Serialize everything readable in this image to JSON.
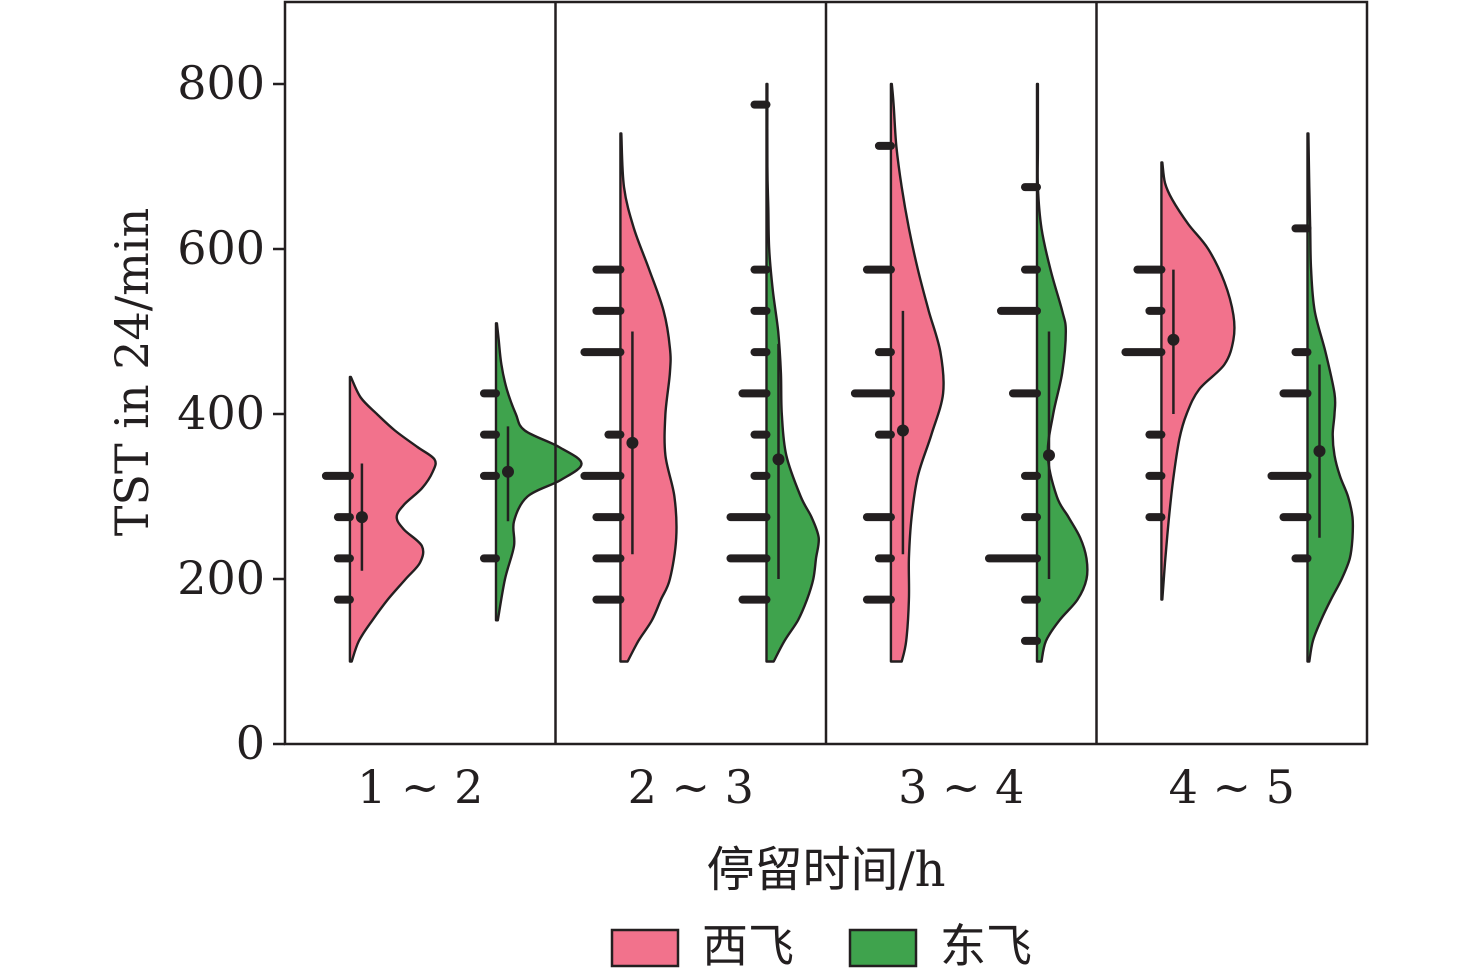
{
  "chart_data": {
    "type": "violin",
    "xlabel": "停留时间/h",
    "ylabel": "TST in 24/min",
    "ylim": [
      0,
      900
    ],
    "yticks": [
      0,
      200,
      400,
      600,
      800
    ],
    "grid": false,
    "legend_position": "bottom",
    "categories": [
      "1 ~ 2",
      "2 ~ 3",
      "3 ~ 4",
      "4 ~ 5"
    ],
    "series": [
      {
        "name": "西飞",
        "color": "#f2728c",
        "groups": [
          {
            "category": "1 ~ 2",
            "range": [
              100,
              445
            ],
            "density": [
              [
                100,
                0.02
              ],
              [
                125,
                0.1
              ],
              [
                150,
                0.25
              ],
              [
                175,
                0.42
              ],
              [
                200,
                0.62
              ],
              [
                220,
                0.78
              ],
              [
                240,
                0.8
              ],
              [
                260,
                0.6
              ],
              [
                275,
                0.52
              ],
              [
                290,
                0.6
              ],
              [
                310,
                0.8
              ],
              [
                330,
                0.92
              ],
              [
                345,
                0.94
              ],
              [
                360,
                0.75
              ],
              [
                380,
                0.5
              ],
              [
                400,
                0.3
              ],
              [
                420,
                0.12
              ],
              [
                445,
                0.01
              ]
            ],
            "mean": 275,
            "whisker": [
              210,
              340
            ],
            "points": [
              [
                175,
                1
              ],
              [
                225,
                1
              ],
              [
                275,
                1
              ],
              [
                325,
                2
              ]
            ]
          },
          {
            "category": "2 ~ 3",
            "range": [
              100,
              740
            ],
            "density": [
              [
                100,
                0.08
              ],
              [
                125,
                0.2
              ],
              [
                150,
                0.35
              ],
              [
                175,
                0.45
              ],
              [
                200,
                0.55
              ],
              [
                250,
                0.62
              ],
              [
                300,
                0.6
              ],
              [
                350,
                0.5
              ],
              [
                400,
                0.5
              ],
              [
                450,
                0.55
              ],
              [
                480,
                0.55
              ],
              [
                525,
                0.48
              ],
              [
                575,
                0.32
              ],
              [
                625,
                0.15
              ],
              [
                675,
                0.04
              ],
              [
                740,
                0.01
              ]
            ],
            "mean": 365,
            "whisker": [
              230,
              500
            ],
            "points": [
              [
                175,
                2
              ],
              [
                225,
                2
              ],
              [
                275,
                2
              ],
              [
                325,
                3
              ],
              [
                375,
                1
              ],
              [
                475,
                3
              ],
              [
                525,
                2
              ],
              [
                575,
                2
              ]
            ]
          },
          {
            "category": "3 ~ 4",
            "range": [
              100,
              800
            ],
            "density": [
              [
                100,
                0.12
              ],
              [
                125,
                0.17
              ],
              [
                175,
                0.2
              ],
              [
                225,
                0.2
              ],
              [
                275,
                0.23
              ],
              [
                325,
                0.3
              ],
              [
                375,
                0.45
              ],
              [
                425,
                0.58
              ],
              [
                475,
                0.55
              ],
              [
                525,
                0.42
              ],
              [
                575,
                0.3
              ],
              [
                625,
                0.2
              ],
              [
                675,
                0.12
              ],
              [
                725,
                0.06
              ],
              [
                775,
                0.03
              ],
              [
                800,
                0.01
              ]
            ],
            "mean": 380,
            "whisker": [
              230,
              525
            ],
            "points": [
              [
                175,
                2
              ],
              [
                225,
                1
              ],
              [
                275,
                2
              ],
              [
                375,
                1
              ],
              [
                425,
                3
              ],
              [
                475,
                1
              ],
              [
                575,
                2
              ],
              [
                725,
                1
              ]
            ]
          },
          {
            "category": "4 ~ 5",
            "range": [
              175,
              705
            ],
            "density": [
              [
                175,
                0.01
              ],
              [
                220,
                0.04
              ],
              [
                270,
                0.08
              ],
              [
                320,
                0.13
              ],
              [
                370,
                0.2
              ],
              [
                400,
                0.28
              ],
              [
                430,
                0.42
              ],
              [
                460,
                0.7
              ],
              [
                490,
                0.8
              ],
              [
                520,
                0.8
              ],
              [
                560,
                0.7
              ],
              [
                600,
                0.52
              ],
              [
                630,
                0.3
              ],
              [
                660,
                0.12
              ],
              [
                680,
                0.04
              ],
              [
                705,
                0.01
              ]
            ],
            "mean": 490,
            "whisker": [
              400,
              575
            ],
            "points": [
              [
                275,
                1
              ],
              [
                325,
                1
              ],
              [
                375,
                1
              ],
              [
                475,
                3
              ],
              [
                525,
                1
              ],
              [
                575,
                2
              ]
            ]
          }
        ]
      },
      {
        "name": "东飞",
        "color": "#3fa34d",
        "groups": [
          {
            "category": "1 ~ 2",
            "range": [
              150,
              510
            ],
            "density": [
              [
                150,
                0.02
              ],
              [
                200,
                0.1
              ],
              [
                240,
                0.2
              ],
              [
                270,
                0.2
              ],
              [
                300,
                0.35
              ],
              [
                320,
                0.72
              ],
              [
                340,
                0.95
              ],
              [
                360,
                0.7
              ],
              [
                380,
                0.32
              ],
              [
                400,
                0.22
              ],
              [
                430,
                0.12
              ],
              [
                460,
                0.06
              ],
              [
                490,
                0.03
              ],
              [
                510,
                0.01
              ]
            ],
            "mean": 330,
            "whisker": [
              270,
              385
            ],
            "points": [
              [
                225,
                1
              ],
              [
                325,
                1
              ],
              [
                375,
                1
              ],
              [
                425,
                1
              ]
            ]
          },
          {
            "category": "2 ~ 3",
            "range": [
              100,
              800
            ],
            "density": [
              [
                100,
                0.08
              ],
              [
                125,
                0.2
              ],
              [
                150,
                0.35
              ],
              [
                175,
                0.45
              ],
              [
                200,
                0.52
              ],
              [
                225,
                0.55
              ],
              [
                250,
                0.58
              ],
              [
                275,
                0.5
              ],
              [
                300,
                0.38
              ],
              [
                350,
                0.22
              ],
              [
                400,
                0.17
              ],
              [
                450,
                0.16
              ],
              [
                500,
                0.13
              ],
              [
                550,
                0.07
              ],
              [
                600,
                0.03
              ],
              [
                650,
                0.02
              ],
              [
                700,
                0.01
              ],
              [
                800,
                0.01
              ]
            ],
            "mean": 345,
            "whisker": [
              200,
              485
            ],
            "points": [
              [
                175,
                2
              ],
              [
                225,
                3
              ],
              [
                275,
                3
              ],
              [
                325,
                1
              ],
              [
                375,
                1
              ],
              [
                425,
                2
              ],
              [
                475,
                1
              ],
              [
                525,
                1
              ],
              [
                575,
                1
              ],
              [
                775,
                1
              ]
            ]
          },
          {
            "category": "3 ~ 4",
            "range": [
              100,
              800
            ],
            "density": [
              [
                100,
                0.05
              ],
              [
                125,
                0.1
              ],
              [
                150,
                0.25
              ],
              [
                175,
                0.45
              ],
              [
                200,
                0.55
              ],
              [
                225,
                0.55
              ],
              [
                250,
                0.48
              ],
              [
                275,
                0.35
              ],
              [
                300,
                0.22
              ],
              [
                350,
                0.12
              ],
              [
                400,
                0.18
              ],
              [
                450,
                0.28
              ],
              [
                500,
                0.32
              ],
              [
                525,
                0.28
              ],
              [
                575,
                0.15
              ],
              [
                625,
                0.05
              ],
              [
                675,
                0.01
              ],
              [
                725,
                0.01
              ],
              [
                800,
                0.01
              ]
            ],
            "mean": 350,
            "whisker": [
              200,
              500
            ],
            "points": [
              [
                125,
                1
              ],
              [
                175,
                1
              ],
              [
                225,
                4
              ],
              [
                275,
                1
              ],
              [
                325,
                1
              ],
              [
                425,
                2
              ],
              [
                525,
                3
              ],
              [
                575,
                1
              ],
              [
                675,
                1
              ]
            ]
          },
          {
            "category": "4 ~ 5",
            "range": [
              100,
              740
            ],
            "density": [
              [
                100,
                0.02
              ],
              [
                125,
                0.06
              ],
              [
                150,
                0.15
              ],
              [
                175,
                0.26
              ],
              [
                200,
                0.38
              ],
              [
                225,
                0.47
              ],
              [
                250,
                0.5
              ],
              [
                275,
                0.5
              ],
              [
                300,
                0.45
              ],
              [
                325,
                0.36
              ],
              [
                350,
                0.3
              ],
              [
                375,
                0.28
              ],
              [
                400,
                0.3
              ],
              [
                425,
                0.3
              ],
              [
                475,
                0.2
              ],
              [
                525,
                0.08
              ],
              [
                575,
                0.04
              ],
              [
                625,
                0.03
              ],
              [
                675,
                0.02
              ],
              [
                740,
                0.01
              ]
            ],
            "mean": 355,
            "whisker": [
              250,
              460
            ],
            "points": [
              [
                225,
                1
              ],
              [
                275,
                2
              ],
              [
                325,
                3
              ],
              [
                425,
                2
              ],
              [
                475,
                1
              ],
              [
                625,
                1
              ]
            ]
          }
        ]
      }
    ]
  }
}
